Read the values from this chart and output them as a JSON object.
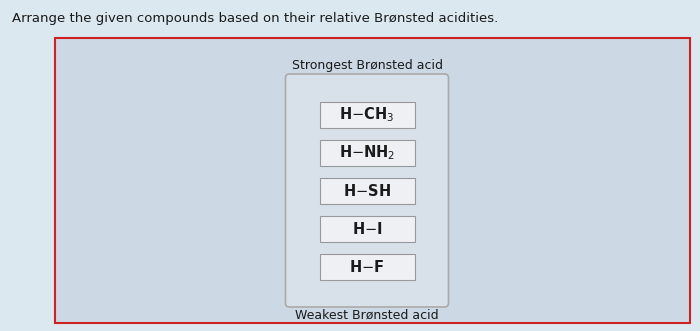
{
  "title": "Arrange the given compounds based on their relative Brønsted acidities.",
  "strongest_label": "Strongest Brønsted acid",
  "weakest_label": "Weakest Brønsted acid",
  "page_bg": "#dce8f0",
  "outer_box_color": "#cc2222",
  "outer_box_bg": "#ccd8e4",
  "inner_box_bg": "#d8e0ea",
  "inner_box_edge": "#aaaaaa",
  "compound_box_bg": "#eef0f4",
  "compound_box_edge": "#999999",
  "text_color": "#1a1a1a",
  "title_fontsize": 9.5,
  "label_fontsize": 9.0,
  "compound_fontsize": 10.5,
  "fig_width": 7.0,
  "fig_height": 3.31,
  "dpi": 100
}
